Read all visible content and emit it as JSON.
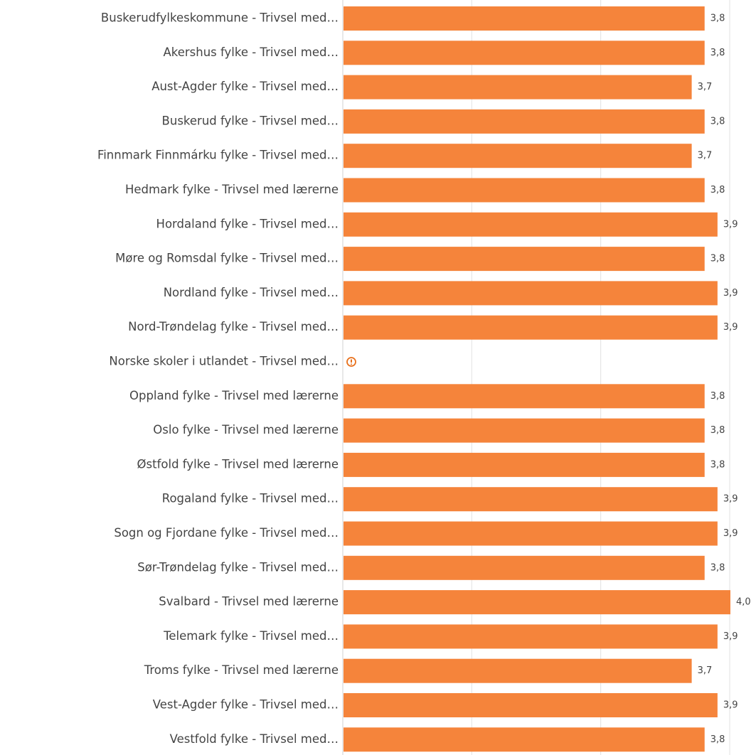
{
  "chart_data": {
    "type": "barh",
    "categories": [
      "Buskerudfylkeskommune - Trivsel med…",
      "Akershus fylke - Trivsel med…",
      "Aust-Agder fylke - Trivsel med…",
      "Buskerud fylke - Trivsel med…",
      "Finnmark Finnmárku fylke - Trivsel med…",
      "Hedmark fylke - Trivsel med lærerne",
      "Hordaland fylke - Trivsel med…",
      "Møre og Romsdal fylke - Trivsel med…",
      "Nordland fylke - Trivsel med…",
      "Nord-Trøndelag fylke - Trivsel med…",
      "Norske skoler i utlandet - Trivsel med…",
      "Oppland fylke - Trivsel med lærerne",
      "Oslo fylke - Trivsel med lærerne",
      "Østfold fylke - Trivsel med lærerne",
      "Rogaland fylke - Trivsel med…",
      "Sogn og Fjordane fylke - Trivsel med…",
      "Sør-Trøndelag fylke - Trivsel med…",
      "Svalbard - Trivsel med lærerne",
      "Telemark fylke - Trivsel med…",
      "Troms fylke - Trivsel med lærerne",
      "Vest-Agder fylke - Trivsel med…",
      "Vestfold fylke - Trivsel med…"
    ],
    "values": [
      3.8,
      3.8,
      3.7,
      3.8,
      3.7,
      3.8,
      3.9,
      3.8,
      3.9,
      3.9,
      null,
      3.8,
      3.8,
      3.8,
      3.9,
      3.9,
      3.8,
      4.0,
      3.9,
      3.7,
      3.9,
      3.8
    ],
    "value_labels": [
      "3,8",
      "3,8",
      "3,7",
      "3,8",
      "3,7",
      "3,8",
      "3,9",
      "3,8",
      "3,9",
      "3,9",
      null,
      "3,8",
      "3,8",
      "3,8",
      "3,9",
      "3,9",
      "3,8",
      "4,0",
      "3,9",
      "3,7",
      "3,9",
      "3,8"
    ],
    "color": "#f5843b",
    "xlim": [
      1,
      4
    ],
    "xticks": [
      2,
      3,
      4
    ],
    "grid": true
  }
}
